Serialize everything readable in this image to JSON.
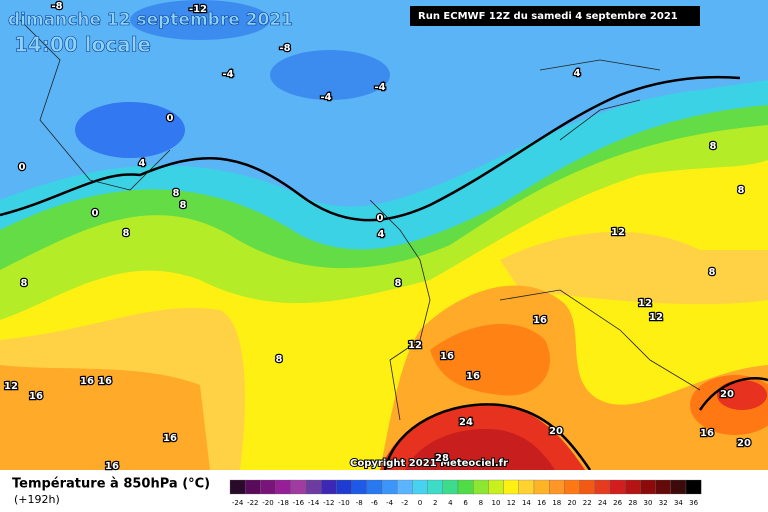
{
  "header": {
    "title": "dimanche 12 septembre 2021",
    "time": "14:00 locale",
    "run": "Run ECMWF 12Z du samedi 4 septembre 2021"
  },
  "copyright": "Copyright 2021 Meteociel.fr",
  "legend": {
    "title": "Température à 850hPa (°C)",
    "lead": "(+192h)",
    "ticks": [
      -24,
      -22,
      -20,
      -18,
      -16,
      -14,
      -12,
      -10,
      -8,
      -6,
      -4,
      -2,
      0,
      2,
      4,
      6,
      8,
      10,
      12,
      14,
      16,
      18,
      20,
      22,
      24,
      26,
      28,
      30,
      32,
      34,
      36
    ],
    "colors": [
      "#2a0a2a",
      "#5a0a5a",
      "#7a147a",
      "#961e96",
      "#a03ca0",
      "#6e3ca0",
      "#3c28b4",
      "#1e3cd2",
      "#1e5ae6",
      "#2878f0",
      "#3c96fa",
      "#5ab4ff",
      "#46d2f0",
      "#3cdcc8",
      "#3cdc8c",
      "#50dc46",
      "#8ce632",
      "#c8f01e",
      "#fff014",
      "#ffd232",
      "#ffb428",
      "#ff9628",
      "#ff7814",
      "#f05a14",
      "#e63c1e",
      "#d21e1e",
      "#b41414",
      "#8c0a0a",
      "#640a0a",
      "#3c0a0a",
      "#000000"
    ]
  },
  "contour_labels": [
    -8,
    -12,
    -8,
    -4,
    -4,
    -4,
    4,
    0,
    0,
    4,
    8,
    8,
    0,
    8,
    0,
    4,
    8,
    8,
    12,
    8,
    8,
    8,
    12,
    12,
    16,
    12,
    16,
    8,
    16,
    12,
    16,
    16,
    16,
    20,
    24,
    20,
    16,
    16,
    20,
    16,
    28
  ]
}
